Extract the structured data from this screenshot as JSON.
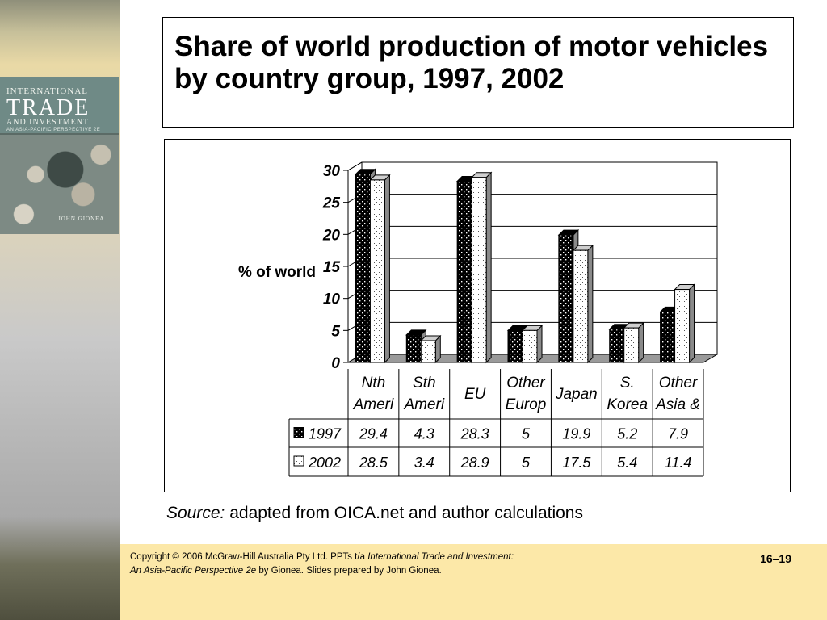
{
  "cover": {
    "line1": "INTERNATIONAL",
    "line2": "TRADE",
    "line3": "AND INVESTMENT",
    "line4": "AN ASIA-PACIFIC PERSPECTIVE 2E",
    "author": "JOHN GIONEA"
  },
  "title": "Share of world production of motor vehicles by country group, 1997, 2002",
  "source": {
    "label": "Source:",
    "text": "adapted from OICA.net and author calculations"
  },
  "footer": {
    "copy_prefix": "Copyright © 2006 McGraw-Hill Australia Pty Ltd. PPTs t/a",
    "book_title_1": "International Trade and Investment:",
    "book_title_2": "An Asia-Pacific Perspective 2e",
    "copy_suffix": "by Gionea. Slides prepared by John Gionea.",
    "page": "16–19"
  },
  "chart_data": {
    "type": "bar",
    "title": "",
    "ylabel": "% of world",
    "xlabel": "",
    "ylim": [
      0,
      30
    ],
    "yticks": [
      0,
      5,
      10,
      15,
      20,
      25,
      30
    ],
    "grid": true,
    "categories": [
      [
        "Nth",
        "Ameri"
      ],
      [
        "Sth",
        "Ameri"
      ],
      [
        "EU"
      ],
      [
        "Other",
        "Europ"
      ],
      [
        "Japan"
      ],
      [
        "S.",
        "Korea"
      ],
      [
        "Other",
        "Asia &"
      ]
    ],
    "series": [
      {
        "name": "1997",
        "values": [
          29.4,
          4.3,
          28.3,
          5,
          19.9,
          5.2,
          7.9
        ],
        "value_labels": [
          "29.4",
          "4.3",
          "28.3",
          "5",
          "19.9",
          "5.2",
          "7.9"
        ],
        "pattern": "dark-dotted"
      },
      {
        "name": "2002",
        "values": [
          28.5,
          3.4,
          28.9,
          5,
          17.5,
          5.4,
          11.4
        ],
        "value_labels": [
          "28.5",
          "3.4",
          "28.9",
          "5",
          "17.5",
          "5.4",
          "11.4"
        ],
        "pattern": "light-dotted"
      }
    ],
    "legend": "data-table",
    "colors": {
      "dark": "#000000",
      "light": "#ffffff",
      "side": "#8a8a8a",
      "top_light": "#cfcfcf"
    }
  }
}
